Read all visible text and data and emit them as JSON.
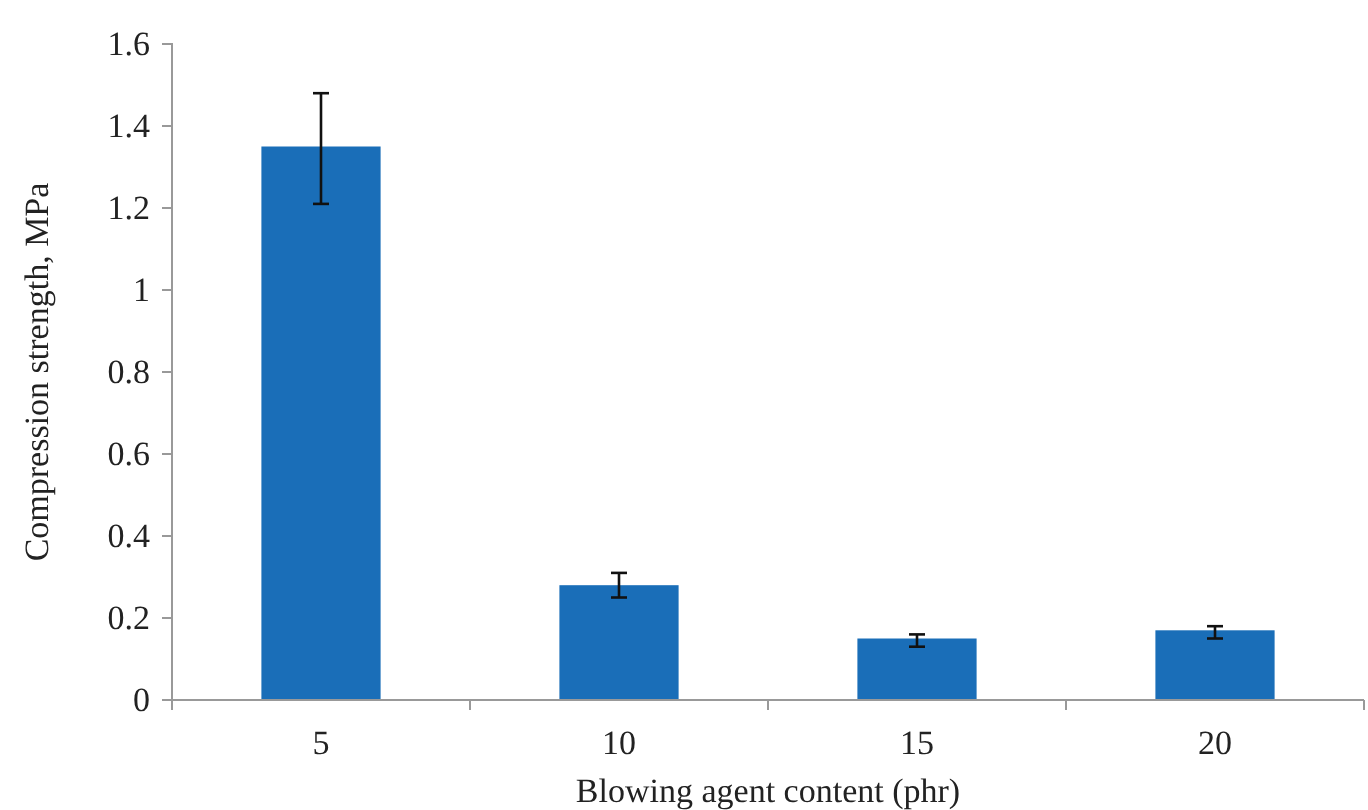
{
  "chart_data": {
    "type": "bar",
    "xlabel": "Blowing agent content (phr)",
    "ylabel": "Compression strength, MPa",
    "categories": [
      "5",
      "10",
      "15",
      "20"
    ],
    "values": [
      1.35,
      0.28,
      0.15,
      0.17
    ],
    "errors": [
      [
        1.21,
        1.48
      ],
      [
        0.25,
        0.31
      ],
      [
        0.13,
        0.16
      ],
      [
        0.15,
        0.18
      ]
    ],
    "color": "#1a6eb8",
    "ylim": [
      0,
      1.6
    ],
    "yticks": [
      0,
      0.2,
      0.4,
      0.6,
      0.8,
      1,
      1.2,
      1.4,
      1.6
    ],
    "grid": false
  }
}
